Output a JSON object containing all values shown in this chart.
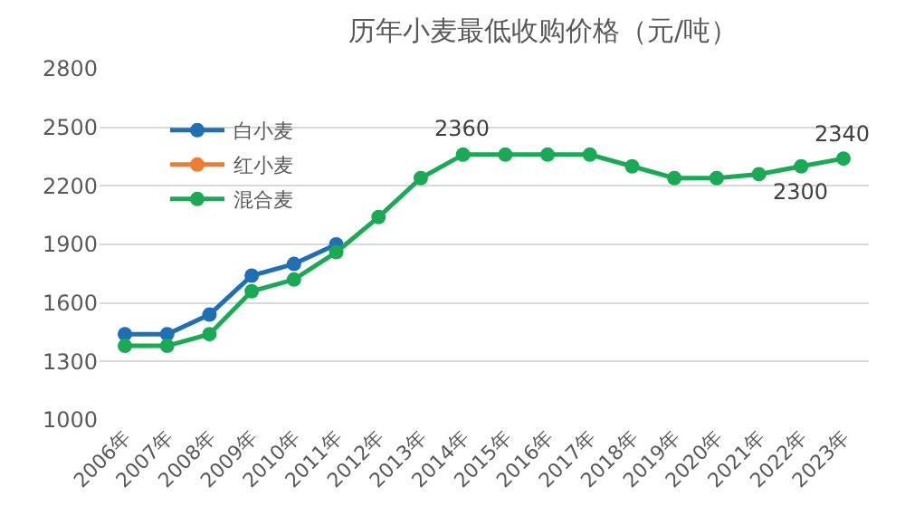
{
  "chart_data": {
    "type": "line",
    "title": "历年小麦最低收购价格（元/吨）",
    "categories": [
      "2006年",
      "2007年",
      "2008年",
      "2009年",
      "2010年",
      "2011年",
      "2012年",
      "2013年",
      "2014年",
      "2015年",
      "2016年",
      "2017年",
      "2018年",
      "2019年",
      "2020年",
      "2021年",
      "2022年",
      "2023年"
    ],
    "series": [
      {
        "name": "白小麦",
        "color": "#1f6fb5",
        "values": [
          1440,
          1440,
          1540,
          1740,
          1800,
          1900,
          null,
          null,
          null,
          null,
          null,
          null,
          null,
          null,
          null,
          null,
          null,
          null
        ]
      },
      {
        "name": "红小麦",
        "color": "#ed7d31",
        "values": [
          null,
          null,
          null,
          null,
          null,
          null,
          null,
          null,
          null,
          null,
          null,
          null,
          null,
          null,
          null,
          null,
          null,
          null
        ]
      },
      {
        "name": "混合麦",
        "color": "#1aaa55",
        "values": [
          1380,
          1380,
          1440,
          1660,
          1720,
          1860,
          2040,
          2240,
          2360,
          2360,
          2360,
          2360,
          2300,
          2240,
          2240,
          2260,
          2300,
          2340
        ]
      }
    ],
    "annotations": [
      {
        "text": "2360",
        "x": "2014年",
        "y": 2360
      },
      {
        "text": "2300",
        "x": "2022年",
        "y": 2300
      },
      {
        "text": "2340",
        "x": "2023年",
        "y": 2340
      }
    ],
    "ylim": [
      1000,
      2800
    ],
    "yticks": [
      1000,
      1300,
      1600,
      1900,
      2200,
      2500,
      2800
    ],
    "grid": "y",
    "legend": "top left",
    "marker": "circle",
    "line_style": "solid"
  }
}
